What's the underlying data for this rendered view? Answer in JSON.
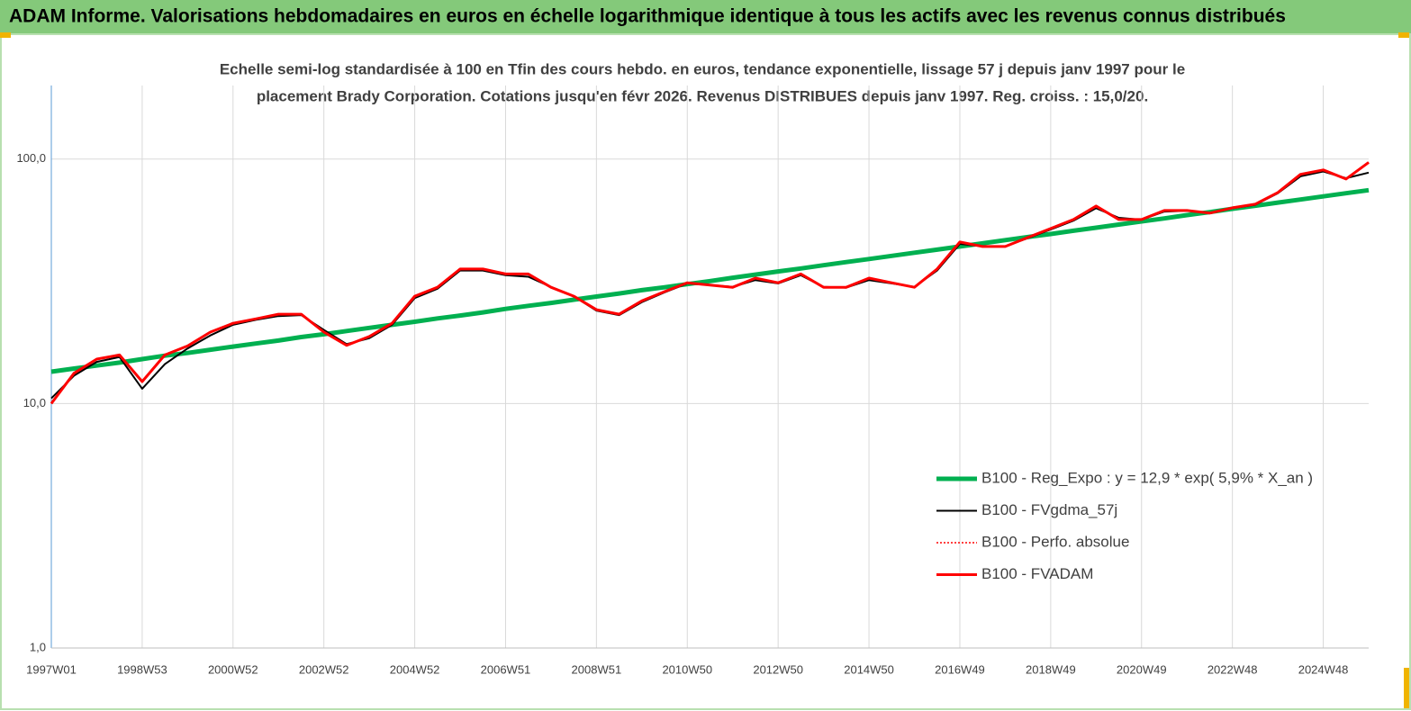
{
  "header": {
    "title": "ADAM Informe. Valorisations hebdomadaires en euros en échelle logarithmique identique à tous les actifs avec les revenus connus distribués"
  },
  "chart_data": {
    "type": "line",
    "subtitle": [
      "Echelle semi-log standardisée à 100 en Tfin des cours hebdo. en euros, tendance exponentielle, lissage 57 j depuis janv 1997 pour le",
      "placement Brady Corporation. Cotations jusqu'en févr 2026.  Revenus DISTRIBUES depuis janv 1997. Reg. croiss. : 15,0/20."
    ],
    "categories": [
      "1997W01",
      null,
      null,
      null,
      "1998W53",
      null,
      null,
      null,
      "2000W52",
      null,
      null,
      null,
      "2002W52",
      null,
      null,
      null,
      "2004W52",
      null,
      null,
      null,
      "2006W51",
      null,
      null,
      null,
      "2008W51",
      null,
      null,
      null,
      "2010W50",
      null,
      null,
      null,
      "2012W50",
      null,
      null,
      null,
      "2014W50",
      null,
      null,
      null,
      "2016W49",
      null,
      null,
      null,
      "2018W49",
      null,
      null,
      null,
      "2020W49",
      null,
      null,
      null,
      "2022W48",
      null,
      null,
      null,
      "2024W48",
      null,
      null
    ],
    "log_scale": true,
    "ylim": [
      1,
      200
    ],
    "yticks": [
      {
        "value": 1,
        "label": "1,0"
      },
      {
        "value": 10,
        "label": "10,0"
      },
      {
        "value": 100,
        "label": "100,0"
      }
    ],
    "grid": true,
    "legend": "right",
    "series": [
      {
        "name": "B100 - Reg_Expo : y = 12,9 * exp( 5,9% *  X_an )",
        "color": "#00b050",
        "style": "solid",
        "width": 5,
        "values": [
          13.5,
          13.9,
          14.3,
          14.7,
          15.2,
          15.7,
          16.1,
          16.6,
          17.1,
          17.6,
          18.1,
          18.7,
          19.2,
          19.8,
          20.4,
          21.0,
          21.6,
          22.3,
          22.9,
          23.6,
          24.4,
          25.1,
          25.8,
          26.6,
          27.4,
          28.2,
          29.1,
          29.9,
          30.8,
          31.7,
          32.7,
          33.7,
          34.7,
          35.7,
          36.8,
          37.9,
          39.0,
          40.2,
          41.4,
          42.6,
          43.9,
          45.2,
          46.6,
          48.0,
          49.4,
          50.9,
          52.4,
          54.0,
          55.6,
          57.2,
          59.0,
          60.7,
          62.6,
          64.4,
          66.4,
          68.3,
          70.4,
          72.5,
          74.6
        ]
      },
      {
        "name": "B100 - FVgdma_57j",
        "color": "#000000",
        "style": "solid",
        "width": 2,
        "values": [
          10.5,
          13.0,
          14.8,
          15.5,
          11.5,
          14.5,
          16.8,
          19.0,
          21.0,
          22.0,
          22.8,
          23.0,
          20.0,
          17.5,
          18.5,
          21.0,
          27.0,
          29.5,
          35.0,
          35.0,
          33.5,
          33.0,
          30.0,
          27.5,
          24.0,
          23.0,
          26.0,
          28.5,
          31.0,
          30.5,
          30.0,
          32.0,
          31.0,
          33.5,
          30.0,
          29.8,
          32.0,
          31.0,
          30.0,
          35.0,
          45.0,
          44.0,
          44.0,
          47.5,
          51.5,
          56.0,
          63.0,
          57.5,
          56.5,
          61.0,
          61.5,
          60.0,
          63.0,
          65.0,
          72.5,
          85.0,
          89.0,
          83.5,
          88.0
        ]
      },
      {
        "name": "B100 - Perfo. absolue",
        "color": "#ff0000",
        "style": "dotted",
        "width": 1.5,
        "values": [
          10.0,
          13.3,
          15.2,
          15.8,
          12.3,
          15.8,
          17.2,
          19.6,
          21.3,
          22.2,
          23.2,
          23.2,
          19.6,
          17.3,
          18.8,
          21.3,
          27.5,
          29.9,
          35.5,
          35.5,
          33.9,
          33.9,
          29.9,
          27.5,
          24.2,
          23.2,
          26.3,
          28.7,
          31.2,
          30.5,
          29.9,
          32.6,
          31.2,
          33.9,
          29.9,
          29.9,
          32.6,
          31.2,
          29.9,
          35.5,
          45.8,
          43.9,
          43.9,
          47.8,
          52.0,
          56.6,
          64.3,
          56.6,
          56.6,
          61.6,
          61.6,
          60.1,
          63.2,
          65.4,
          73.0,
          86.6,
          90.3,
          82.9,
          97.0
        ]
      },
      {
        "name": "B100 - FVADAM",
        "color": "#ff0000",
        "style": "solid",
        "width": 3,
        "values": [
          10.0,
          13.3,
          15.2,
          15.8,
          12.3,
          15.8,
          17.2,
          19.6,
          21.3,
          22.2,
          23.2,
          23.2,
          19.6,
          17.3,
          18.8,
          21.3,
          27.5,
          29.9,
          35.5,
          35.5,
          33.9,
          33.9,
          29.9,
          27.5,
          24.2,
          23.2,
          26.3,
          28.7,
          31.2,
          30.5,
          29.9,
          32.6,
          31.2,
          33.9,
          29.9,
          29.9,
          32.6,
          31.2,
          29.9,
          35.5,
          45.8,
          43.9,
          43.9,
          47.8,
          52.0,
          56.6,
          64.3,
          56.6,
          56.6,
          61.6,
          61.6,
          60.1,
          63.2,
          65.4,
          73.0,
          86.6,
          90.3,
          82.9,
          97.0
        ]
      }
    ]
  }
}
